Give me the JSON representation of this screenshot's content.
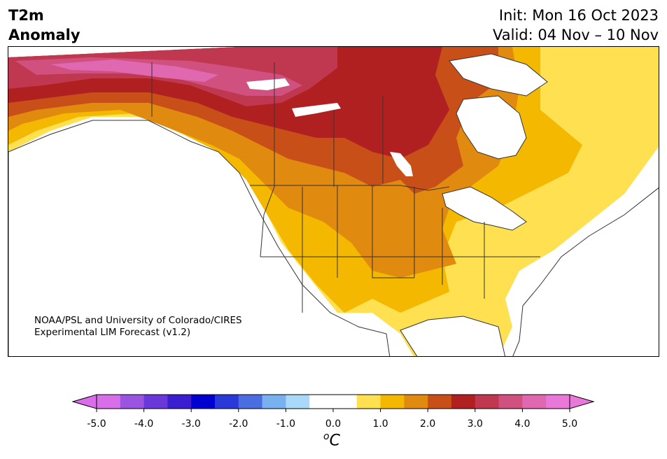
{
  "title": {
    "variable_line1": "T2m",
    "variable_line2": "Anomaly",
    "init": "Init: Mon 16 Oct 2023",
    "valid": "Valid: 04 Nov – 10 Nov"
  },
  "credit": {
    "line1": "NOAA/PSL and University of Colorado/CIRES",
    "line2": "Experimental LIM Forecast (v1.2)"
  },
  "colorbar": {
    "unit": "C",
    "unit_prefix": "o",
    "ticks": [
      "-5.0",
      "-4.0",
      "-3.0",
      "-2.0",
      "-1.0",
      "0.0",
      "1.0",
      "2.0",
      "3.0",
      "4.0",
      "5.0"
    ],
    "colors": [
      "#d86fe8",
      "#9b54e0",
      "#6a38d8",
      "#3a1ed0",
      "#0000d0",
      "#2a3ad8",
      "#4a6ee0",
      "#78b0f0",
      "#aad8f8",
      "#ffffff",
      "#ffffff",
      "#ffe050",
      "#f4b800",
      "#e08a10",
      "#c85018",
      "#b02020",
      "#c03850",
      "#d05080",
      "#e068b0",
      "#ea78d8"
    ],
    "underflow_color": "#d86fe8",
    "overflow_color": "#ea78d8"
  },
  "map_colors": {
    "ocean": "#ffffff",
    "anom_0_5": "#ffe050",
    "anom_1_0": "#f4b800",
    "anom_1_5": "#e08a10",
    "anom_2_0": "#c85018",
    "anom_2_5": "#b02020",
    "anom_3_0": "#c03850",
    "anom_3_5": "#d05080",
    "anom_4_0": "#e068b0",
    "border": "#333333"
  }
}
